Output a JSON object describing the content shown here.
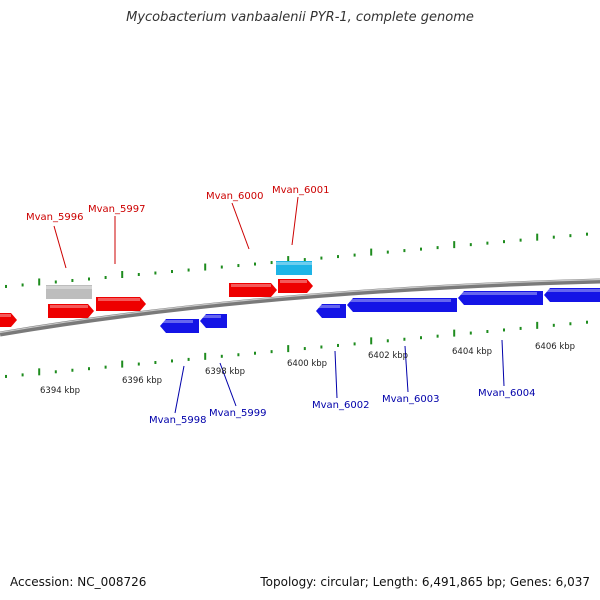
{
  "title": "Mycobacterium vanbaalenii PYR-1, complete genome",
  "accession": "Accession: NC_008726",
  "topology_info": "Topology: circular; Length: 6,491,865 bp; Genes: 6,037",
  "colors": {
    "forward_gene": "#ee0000",
    "reverse_gene": "#1414e6",
    "pseudo_gene": "#bdbdbd",
    "rna_gene": "#1eb4e6",
    "forward_label": "#cc0000",
    "reverse_label": "#0000aa",
    "ticks": "#1e8c1e",
    "backbone": "#7a7a7a"
  },
  "scale_labels": [
    "6394 kbp",
    "6396 kbp",
    "6398 kbp",
    "6400 kbp",
    "6402 kbp",
    "6404 kbp",
    "6406 kbp"
  ],
  "forward_labels": [
    "Mvan_5996",
    "Mvan_5997",
    "Mvan_6000",
    "Mvan_6001"
  ],
  "reverse_labels": [
    "Mvan_5998",
    "Mvan_5999",
    "Mvan_6002",
    "Mvan_6003",
    "Mvan_6004"
  ]
}
